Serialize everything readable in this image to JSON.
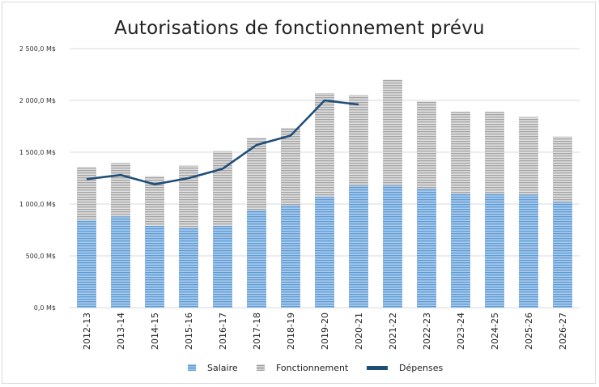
{
  "chart_data": {
    "type": "bar",
    "stacked": true,
    "title": "Autorisations de fonctionnement prévu",
    "xlabel": "",
    "ylabel": "",
    "ylim": [
      0,
      2500
    ],
    "y_ticks": [
      "0,0 M$",
      "500,0 M$",
      "1 000,0 M$",
      "1 500,0 M$",
      "2 000,0 M$",
      "2 500,0 M$"
    ],
    "grid": true,
    "legend_position": "bottom",
    "categories": [
      "2012-13",
      "2013-14",
      "2014-15",
      "2015-16",
      "2016-17",
      "2017-18",
      "2018-19",
      "2019-20",
      "2020-21",
      "2021-22",
      "2022-23",
      "2023-24",
      "2024-25",
      "2025-26",
      "2026-27"
    ],
    "series": [
      {
        "name": "Salaire",
        "kind": "bar",
        "color": "#5b9bd5",
        "values": [
          840,
          880,
          790,
          770,
          790,
          940,
          990,
          1070,
          1180,
          1180,
          1150,
          1100,
          1100,
          1090,
          1020
        ]
      },
      {
        "name": "Fonctionnement",
        "kind": "bar",
        "color": "#bfbfbf",
        "values": [
          515,
          515,
          480,
          600,
          720,
          700,
          745,
          1000,
          870,
          1020,
          840,
          790,
          790,
          750,
          630
        ]
      },
      {
        "name": "Dépenses",
        "kind": "line",
        "color": "#1f4e79",
        "values": [
          1240,
          1280,
          1190,
          1250,
          1340,
          1570,
          1660,
          2000,
          1960,
          null,
          null,
          null,
          null,
          null,
          null
        ]
      }
    ]
  }
}
